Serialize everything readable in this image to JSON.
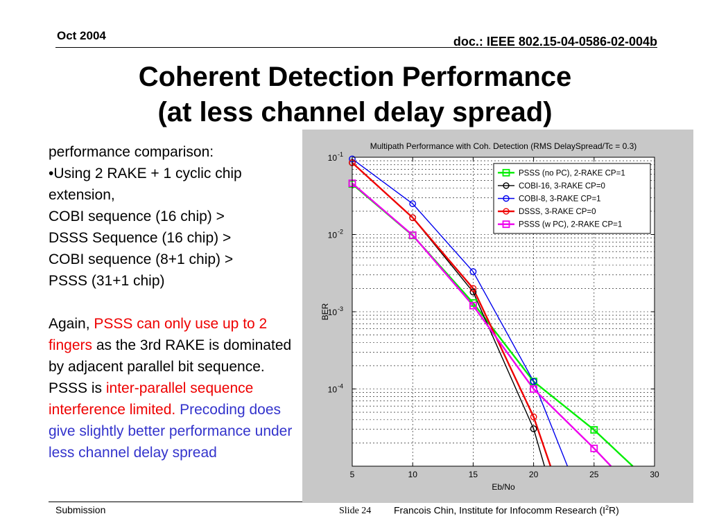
{
  "header": {
    "date": "Oct 2004",
    "doc_id": "doc.: IEEE 802.15-04-0586-02-004b"
  },
  "title": {
    "line1": "Coherent Detection Performance",
    "line2": "(at less channel delay spread)"
  },
  "body": {
    "line1": "performance comparison:",
    "bullet": "•Using 2 RAKE + 1 cyclic chip extension,",
    "ranking": [
      "COBI sequence (16 chip) >",
      "DSSS Sequence (16 chip) >",
      "COBI sequence (8+1 chip) >",
      "PSSS (31+1 chip)"
    ],
    "p2_prefix": "Again, ",
    "p2_red1": "PSSS can only use up to 2 fingers",
    "p2_mid": " as the 3rd RAKE is dominated by adjacent parallel bit sequence. PSSS is ",
    "p2_red2": "inter-parallel sequence interference limited.",
    "p2_space": " ",
    "p2_blue": "Precoding does give slightly better performance under less channel delay spread"
  },
  "footer": {
    "left": "Submission",
    "slide": "Slide 24",
    "author_prefix": "Francois Chin, Institute for Infocomm Research (I",
    "author_sup": "2",
    "author_suffix": "R)"
  },
  "chart_data": {
    "type": "line",
    "title": "Multipath Performance with Coh. Detection (RMS DelaySpread/Tc = 0.3)",
    "xlabel": "Eb/No",
    "ylabel": "BER",
    "xlim": [
      5,
      30
    ],
    "ylim": [
      1e-05,
      0.1
    ],
    "yscale": "log",
    "grid": true,
    "legend_position": "top-right",
    "x_ticks": [
      "5",
      "10",
      "15",
      "20",
      "25",
      "30"
    ],
    "y_ticks": [
      {
        "value": 0.1,
        "base": "10",
        "exp": "-1"
      },
      {
        "value": 0.01,
        "base": "10",
        "exp": "-2"
      },
      {
        "value": 0.001,
        "base": "10",
        "exp": "-3"
      },
      {
        "value": 0.0001,
        "base": "10",
        "exp": "-4"
      }
    ],
    "series": [
      {
        "name": "PSSS (no PC), 2-RAKE CP=1",
        "color": "#00ee00",
        "marker": "square",
        "width": 2.4,
        "points": [
          [
            5,
            0.045
          ],
          [
            10,
            0.0097
          ],
          [
            15,
            0.0013
          ],
          [
            20,
            0.000125
          ],
          [
            25,
            2.95e-05
          ],
          [
            28.2,
            1e-05
          ]
        ]
      },
      {
        "name": "COBI-16, 3-RAKE CP=0",
        "color": "#000000",
        "marker": "circle",
        "width": 1.4,
        "points": [
          [
            5,
            0.085
          ],
          [
            10,
            0.0165
          ],
          [
            15,
            0.0018
          ],
          [
            20,
            3.05e-05
          ],
          [
            20.9,
            1e-05
          ]
        ]
      },
      {
        "name": "COBI-8, 3-RAKE CP=1",
        "color": "#0000ee",
        "marker": "circle",
        "width": 1.4,
        "points": [
          [
            5,
            0.095
          ],
          [
            10,
            0.025
          ],
          [
            15,
            0.0033
          ],
          [
            20,
            0.000125
          ],
          [
            22.8,
            1e-05
          ]
        ]
      },
      {
        "name": "DSSS, 3-RAKE CP=0",
        "color": "#ee0000",
        "marker": "circle",
        "width": 2.4,
        "points": [
          [
            5,
            0.085
          ],
          [
            10,
            0.0165
          ],
          [
            15,
            0.002
          ],
          [
            20,
            4.35e-05
          ],
          [
            21.4,
            1e-05
          ]
        ]
      },
      {
        "name": "PSSS (w PC), 2-RAKE CP=1",
        "color": "#ee00ee",
        "marker": "square",
        "width": 2.4,
        "points": [
          [
            5,
            0.046
          ],
          [
            10,
            0.0098
          ],
          [
            15,
            0.0012
          ],
          [
            20,
            0.0001
          ],
          [
            25,
            1.7e-05
          ],
          [
            26.4,
            1e-05
          ]
        ]
      }
    ]
  }
}
